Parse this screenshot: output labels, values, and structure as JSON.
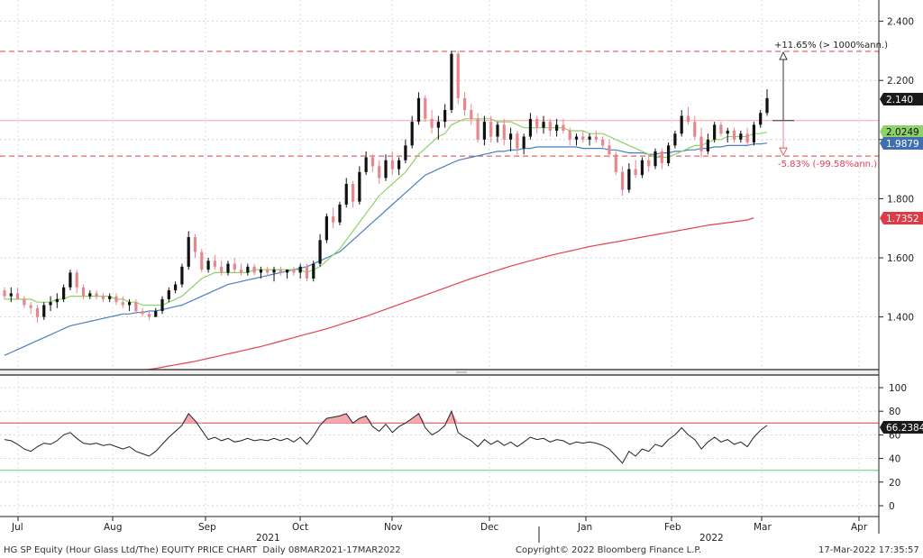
{
  "chart_data": {
    "type": "candlestick",
    "upper_y_ticks": [
      "2.400",
      "2.200",
      "2.000",
      "1.800",
      "1.600",
      "1.400"
    ],
    "lower_y_ticks": [
      "100",
      "80",
      "60",
      "40",
      "20",
      "0"
    ],
    "x_ticks": [
      "Jul",
      "Aug",
      "Sep",
      "Oct",
      "Nov",
      "Dec",
      "Jan",
      "Feb",
      "Mar",
      "Apr"
    ],
    "year_labels": [
      "2021",
      "2022"
    ],
    "price_labels": {
      "last": "2.140",
      "ma_short": "2.0249",
      "ma_mid": "1.9879",
      "ma_long": "1.7352",
      "rsi": "66.2384"
    },
    "annotations": {
      "upper": "+11.65% (> 1000%ann.)",
      "lower": "-5.83% (-99.58%ann.)"
    },
    "levels": {
      "top": 2.298,
      "ref": 2.064,
      "bottom": 1.944,
      "rsi_over": 70,
      "rsi_under": 30
    },
    "colors": {
      "up": "#111111",
      "down": "#e8868d",
      "ma_short": "#8fd16a",
      "ma_mid": "#4a7fc1",
      "ma_long": "#e8414c",
      "rsi": "#222222",
      "dash": "#d6404a",
      "rsi_over_line": "#d6404a",
      "rsi_under_line": "#69d36a"
    },
    "ohlc": [
      [
        1.49,
        1.5,
        1.46,
        1.47
      ],
      [
        1.47,
        1.5,
        1.45,
        1.48
      ],
      [
        1.48,
        1.5,
        1.46,
        1.46
      ],
      [
        1.46,
        1.47,
        1.43,
        1.44
      ],
      [
        1.44,
        1.45,
        1.41,
        1.43
      ],
      [
        1.43,
        1.44,
        1.38,
        1.4
      ],
      [
        1.4,
        1.45,
        1.39,
        1.44
      ],
      [
        1.44,
        1.47,
        1.42,
        1.45
      ],
      [
        1.45,
        1.48,
        1.43,
        1.46
      ],
      [
        1.46,
        1.51,
        1.45,
        1.5
      ],
      [
        1.5,
        1.56,
        1.49,
        1.55
      ],
      [
        1.55,
        1.56,
        1.48,
        1.5
      ],
      [
        1.5,
        1.51,
        1.46,
        1.47
      ],
      [
        1.47,
        1.49,
        1.46,
        1.48
      ],
      [
        1.48,
        1.49,
        1.46,
        1.47
      ],
      [
        1.47,
        1.48,
        1.45,
        1.46
      ],
      [
        1.46,
        1.48,
        1.45,
        1.47
      ],
      [
        1.47,
        1.48,
        1.44,
        1.45
      ],
      [
        1.45,
        1.47,
        1.43,
        1.44
      ],
      [
        1.44,
        1.46,
        1.42,
        1.45
      ],
      [
        1.45,
        1.46,
        1.41,
        1.42
      ],
      [
        1.42,
        1.43,
        1.4,
        1.41
      ],
      [
        1.41,
        1.42,
        1.39,
        1.4
      ],
      [
        1.4,
        1.43,
        1.4,
        1.42
      ],
      [
        1.42,
        1.47,
        1.41,
        1.46
      ],
      [
        1.46,
        1.5,
        1.45,
        1.49
      ],
      [
        1.49,
        1.52,
        1.48,
        1.51
      ],
      [
        1.51,
        1.58,
        1.5,
        1.57
      ],
      [
        1.57,
        1.69,
        1.56,
        1.67
      ],
      [
        1.67,
        1.68,
        1.6,
        1.62
      ],
      [
        1.62,
        1.63,
        1.55,
        1.56
      ],
      [
        1.56,
        1.6,
        1.55,
        1.59
      ],
      [
        1.59,
        1.61,
        1.56,
        1.57
      ],
      [
        1.57,
        1.59,
        1.54,
        1.55
      ],
      [
        1.55,
        1.59,
        1.54,
        1.58
      ],
      [
        1.58,
        1.6,
        1.55,
        1.56
      ],
      [
        1.56,
        1.58,
        1.54,
        1.55
      ],
      [
        1.55,
        1.58,
        1.54,
        1.57
      ],
      [
        1.57,
        1.58,
        1.54,
        1.55
      ],
      [
        1.55,
        1.57,
        1.53,
        1.56
      ],
      [
        1.56,
        1.57,
        1.54,
        1.55
      ],
      [
        1.55,
        1.57,
        1.52,
        1.56
      ],
      [
        1.56,
        1.57,
        1.54,
        1.55
      ],
      [
        1.55,
        1.56,
        1.53,
        1.56
      ],
      [
        1.56,
        1.57,
        1.54,
        1.55
      ],
      [
        1.55,
        1.58,
        1.53,
        1.57
      ],
      [
        1.57,
        1.58,
        1.52,
        1.53
      ],
      [
        1.53,
        1.59,
        1.52,
        1.58
      ],
      [
        1.58,
        1.68,
        1.57,
        1.66
      ],
      [
        1.66,
        1.75,
        1.65,
        1.74
      ],
      [
        1.74,
        1.77,
        1.7,
        1.72
      ],
      [
        1.72,
        1.79,
        1.71,
        1.78
      ],
      [
        1.78,
        1.87,
        1.77,
        1.85
      ],
      [
        1.85,
        1.86,
        1.77,
        1.79
      ],
      [
        1.79,
        1.91,
        1.78,
        1.89
      ],
      [
        1.89,
        1.96,
        1.88,
        1.94
      ],
      [
        1.94,
        1.95,
        1.89,
        1.91
      ],
      [
        1.91,
        1.93,
        1.85,
        1.87
      ],
      [
        1.87,
        1.95,
        1.86,
        1.93
      ],
      [
        1.93,
        1.96,
        1.88,
        1.9
      ],
      [
        1.9,
        1.94,
        1.88,
        1.93
      ],
      [
        1.93,
        2.0,
        1.92,
        1.98
      ],
      [
        1.98,
        2.08,
        1.97,
        2.06
      ],
      [
        2.06,
        2.16,
        2.05,
        2.14
      ],
      [
        2.14,
        2.15,
        2.06,
        2.07
      ],
      [
        2.07,
        2.1,
        2.02,
        2.04
      ],
      [
        2.04,
        2.08,
        2.0,
        2.06
      ],
      [
        2.06,
        2.12,
        2.04,
        2.1
      ],
      [
        2.1,
        2.3,
        2.09,
        2.29
      ],
      [
        2.29,
        2.3,
        2.12,
        2.14
      ],
      [
        2.14,
        2.16,
        2.08,
        2.1
      ],
      [
        2.1,
        2.12,
        2.05,
        2.07
      ],
      [
        2.07,
        2.09,
        1.99,
        2.0
      ],
      [
        2.0,
        2.08,
        1.98,
        2.06
      ],
      [
        2.06,
        2.08,
        1.99,
        2.01
      ],
      [
        2.01,
        2.06,
        1.99,
        2.05
      ],
      [
        2.05,
        2.07,
        1.98,
        2.0
      ],
      [
        2.0,
        2.04,
        1.96,
        2.02
      ],
      [
        2.02,
        2.03,
        1.95,
        1.97
      ],
      [
        1.97,
        2.02,
        1.95,
        2.01
      ],
      [
        2.01,
        2.09,
        2.0,
        2.07
      ],
      [
        2.07,
        2.08,
        2.02,
        2.04
      ],
      [
        2.04,
        2.08,
        2.02,
        2.06
      ],
      [
        2.06,
        2.07,
        2.01,
        2.03
      ],
      [
        2.03,
        2.07,
        2.01,
        2.05
      ],
      [
        2.05,
        2.07,
        2.02,
        2.03
      ],
      [
        2.03,
        2.04,
        1.98,
        2.0
      ],
      [
        2.0,
        2.02,
        1.98,
        2.01
      ],
      [
        2.01,
        2.03,
        1.99,
        2.0
      ],
      [
        2.0,
        2.02,
        1.98,
        2.01
      ],
      [
        2.01,
        2.03,
        1.99,
        2.0
      ],
      [
        2.0,
        2.01,
        1.97,
        1.98
      ],
      [
        1.98,
        2.0,
        1.94,
        1.95
      ],
      [
        1.95,
        1.96,
        1.88,
        1.89
      ],
      [
        1.89,
        1.91,
        1.81,
        1.83
      ],
      [
        1.83,
        1.92,
        1.82,
        1.9
      ],
      [
        1.9,
        1.93,
        1.87,
        1.88
      ],
      [
        1.88,
        1.94,
        1.87,
        1.93
      ],
      [
        1.93,
        1.95,
        1.89,
        1.91
      ],
      [
        1.91,
        1.97,
        1.9,
        1.96
      ],
      [
        1.96,
        1.97,
        1.9,
        1.92
      ],
      [
        1.92,
        1.99,
        1.91,
        1.98
      ],
      [
        1.98,
        2.03,
        1.97,
        2.02
      ],
      [
        2.02,
        2.1,
        2.01,
        2.08
      ],
      [
        2.08,
        2.11,
        2.05,
        2.06
      ],
      [
        2.06,
        2.08,
        2.0,
        2.01
      ],
      [
        2.01,
        2.04,
        1.94,
        1.96
      ],
      [
        1.96,
        2.02,
        1.95,
        2.0
      ],
      [
        2.0,
        2.06,
        1.99,
        2.05
      ],
      [
        2.05,
        2.06,
        2.01,
        2.02
      ],
      [
        2.02,
        2.04,
        1.99,
        2.03
      ],
      [
        2.03,
        2.04,
        1.99,
        2.0
      ],
      [
        2.0,
        2.03,
        1.99,
        2.02
      ],
      [
        2.02,
        2.04,
        1.98,
        1.99
      ],
      [
        1.99,
        2.06,
        1.98,
        2.05
      ],
      [
        2.05,
        2.1,
        2.04,
        2.09
      ],
      [
        2.09,
        2.17,
        2.08,
        2.14
      ]
    ],
    "ma_short_values": [
      1.46,
      1.46,
      1.46,
      1.46,
      1.46,
      1.45,
      1.45,
      1.45,
      1.46,
      1.46,
      1.47,
      1.47,
      1.47,
      1.47,
      1.47,
      1.47,
      1.47,
      1.46,
      1.46,
      1.45,
      1.45,
      1.44,
      1.44,
      1.44,
      1.44,
      1.45,
      1.46,
      1.47,
      1.49,
      1.51,
      1.53,
      1.54,
      1.55,
      1.55,
      1.55,
      1.55,
      1.55,
      1.55,
      1.56,
      1.56,
      1.56,
      1.56,
      1.56,
      1.56,
      1.56,
      1.56,
      1.55,
      1.56,
      1.57,
      1.59,
      1.61,
      1.63,
      1.66,
      1.69,
      1.72,
      1.75,
      1.78,
      1.81,
      1.83,
      1.85,
      1.87,
      1.89,
      1.92,
      1.95,
      1.97,
      1.99,
      2.01,
      2.02,
      2.05,
      2.06,
      2.07,
      2.07,
      2.07,
      2.07,
      2.07,
      2.06,
      2.06,
      2.06,
      2.05,
      2.04,
      2.04,
      2.04,
      2.04,
      2.04,
      2.04,
      2.04,
      2.03,
      2.03,
      2.03,
      2.02,
      2.02,
      2.02,
      2.01,
      2.0,
      1.99,
      1.98,
      1.97,
      1.96,
      1.95,
      1.94,
      1.94,
      1.94,
      1.95,
      1.96,
      1.97,
      1.98,
      1.98,
      1.99,
      2.0,
      2.0,
      2.01,
      2.01,
      2.01,
      2.01,
      2.02,
      2.02,
      2.025
    ],
    "ma_mid_values": [
      1.27,
      1.28,
      1.29,
      1.3,
      1.31,
      1.32,
      1.33,
      1.34,
      1.35,
      1.36,
      1.37,
      1.375,
      1.38,
      1.385,
      1.39,
      1.395,
      1.4,
      1.405,
      1.41,
      1.41,
      1.415,
      1.415,
      1.42,
      1.42,
      1.425,
      1.43,
      1.435,
      1.44,
      1.45,
      1.46,
      1.47,
      1.48,
      1.49,
      1.5,
      1.51,
      1.515,
      1.52,
      1.525,
      1.53,
      1.535,
      1.54,
      1.545,
      1.55,
      1.555,
      1.56,
      1.565,
      1.57,
      1.58,
      1.59,
      1.6,
      1.61,
      1.62,
      1.64,
      1.66,
      1.68,
      1.7,
      1.72,
      1.74,
      1.76,
      1.78,
      1.8,
      1.82,
      1.84,
      1.86,
      1.88,
      1.89,
      1.9,
      1.91,
      1.92,
      1.93,
      1.935,
      1.94,
      1.945,
      1.95,
      1.955,
      1.96,
      1.96,
      1.965,
      1.965,
      1.97,
      1.97,
      1.975,
      1.975,
      1.975,
      1.975,
      1.975,
      1.975,
      1.975,
      1.97,
      1.97,
      1.97,
      1.97,
      1.965,
      1.965,
      1.96,
      1.955,
      1.955,
      1.955,
      1.95,
      1.95,
      1.955,
      1.955,
      1.96,
      1.96,
      1.965,
      1.965,
      1.97,
      1.97,
      1.975,
      1.975,
      1.98,
      1.98,
      1.98,
      1.98,
      1.985,
      1.985,
      1.988
    ],
    "ma_long_values": [
      1.15,
      1.153,
      1.156,
      1.16,
      1.163,
      1.166,
      1.17,
      1.173,
      1.176,
      1.18,
      1.183,
      1.186,
      1.19,
      1.193,
      1.196,
      1.2,
      1.203,
      1.206,
      1.21,
      1.213,
      1.216,
      1.22,
      1.223,
      1.226,
      1.23,
      1.234,
      1.238,
      1.242,
      1.246,
      1.25,
      1.255,
      1.26,
      1.265,
      1.27,
      1.275,
      1.28,
      1.285,
      1.29,
      1.295,
      1.3,
      1.306,
      1.312,
      1.318,
      1.324,
      1.33,
      1.336,
      1.342,
      1.348,
      1.354,
      1.36,
      1.367,
      1.374,
      1.381,
      1.388,
      1.395,
      1.402,
      1.41,
      1.418,
      1.426,
      1.434,
      1.442,
      1.45,
      1.458,
      1.466,
      1.474,
      1.482,
      1.49,
      1.498,
      1.506,
      1.514,
      1.522,
      1.53,
      1.537,
      1.544,
      1.551,
      1.558,
      1.565,
      1.572,
      1.578,
      1.584,
      1.59,
      1.596,
      1.602,
      1.608,
      1.613,
      1.618,
      1.623,
      1.628,
      1.633,
      1.638,
      1.642,
      1.646,
      1.65,
      1.654,
      1.658,
      1.662,
      1.666,
      1.67,
      1.674,
      1.678,
      1.682,
      1.686,
      1.69,
      1.694,
      1.698,
      1.702,
      1.706,
      1.71,
      1.713,
      1.716,
      1.719,
      1.722,
      1.725,
      1.728,
      1.7352
    ],
    "rsi_values": [
      56,
      55,
      52,
      48,
      46,
      50,
      53,
      52,
      55,
      60,
      62,
      57,
      53,
      52,
      53,
      51,
      52,
      50,
      48,
      50,
      46,
      44,
      42,
      46,
      52,
      58,
      63,
      68,
      78,
      72,
      64,
      56,
      58,
      55,
      57,
      54,
      55,
      57,
      55,
      56,
      55,
      57,
      55,
      57,
      54,
      58,
      52,
      59,
      68,
      74,
      75,
      76,
      78,
      70,
      74,
      76,
      67,
      63,
      69,
      62,
      67,
      70,
      74,
      78,
      66,
      60,
      63,
      68,
      80,
      62,
      58,
      55,
      50,
      56,
      52,
      55,
      51,
      54,
      50,
      54,
      58,
      56,
      57,
      54,
      56,
      55,
      52,
      54,
      53,
      54,
      53,
      51,
      48,
      42,
      36,
      46,
      42,
      48,
      46,
      52,
      50,
      56,
      60,
      66,
      60,
      56,
      48,
      54,
      58,
      54,
      56,
      52,
      54,
      50,
      58,
      64,
      68
    ]
  }
}
